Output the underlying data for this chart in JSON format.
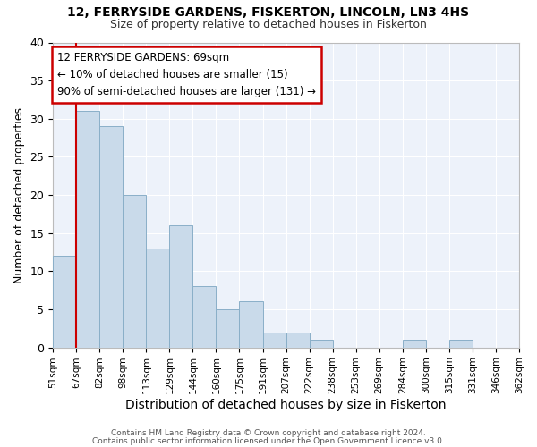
{
  "title1": "12, FERRYSIDE GARDENS, FISKERTON, LINCOLN, LN3 4HS",
  "title2": "Size of property relative to detached houses in Fiskerton",
  "xlabel": "Distribution of detached houses by size in Fiskerton",
  "ylabel": "Number of detached properties",
  "bar_values": [
    12,
    31,
    29,
    20,
    13,
    16,
    8,
    5,
    6,
    2,
    2,
    1,
    0,
    0,
    0,
    1,
    0,
    1,
    0,
    0
  ],
  "bin_labels": [
    "51sqm",
    "67sqm",
    "82sqm",
    "98sqm",
    "113sqm",
    "129sqm",
    "144sqm",
    "160sqm",
    "175sqm",
    "191sqm",
    "207sqm",
    "222sqm",
    "238sqm",
    "253sqm",
    "269sqm",
    "284sqm",
    "300sqm",
    "315sqm",
    "331sqm",
    "346sqm",
    "362sqm"
  ],
  "bar_color": "#c9daea",
  "bar_edge_color": "#8aafc8",
  "red_line_index": 1,
  "annotation_line1": "12 FERRYSIDE GARDENS: 69sqm",
  "annotation_line2": "← 10% of detached houses are smaller (15)",
  "annotation_line3": "90% of semi-detached houses are larger (131) →",
  "annotation_box_color": "#ffffff",
  "annotation_box_edge": "#cc0000",
  "footer1": "Contains HM Land Registry data © Crown copyright and database right 2024.",
  "footer2": "Contains public sector information licensed under the Open Government Licence v3.0.",
  "ylim": [
    0,
    40
  ],
  "yticks": [
    0,
    5,
    10,
    15,
    20,
    25,
    30,
    35,
    40
  ],
  "fig_background": "#ffffff",
  "ax_background": "#edf2fa",
  "grid_color": "#ffffff",
  "red_line_color": "#cc0000",
  "title1_fontsize": 10,
  "title2_fontsize": 9
}
